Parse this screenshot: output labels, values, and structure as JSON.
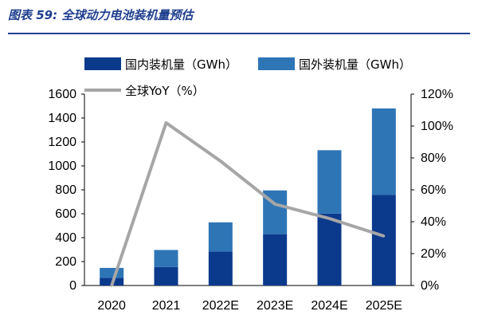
{
  "figure_title": "图表 59:  全球动力电池装机量预估",
  "chart_data": {
    "type": "bar",
    "stacked": true,
    "categories": [
      "2020",
      "2021",
      "2022E",
      "2023E",
      "2024E",
      "2025E"
    ],
    "series": [
      {
        "name": "国内装机量（GWh）",
        "color": "#0b3a8c",
        "values": [
          63,
          154,
          284,
          429,
          601,
          757
        ]
      },
      {
        "name": "国外装机量（GWh）",
        "color": "#2e75b6",
        "values": [
          84,
          143,
          244,
          366,
          530,
          723
        ]
      }
    ],
    "line_series": {
      "name": "全球YoY（%）",
      "color": "#a6a6a6",
      "axis": "right",
      "values": [
        0,
        102,
        78,
        51,
        42,
        31
      ]
    },
    "ylim": [
      0,
      1600
    ],
    "yticks": [
      0,
      200,
      400,
      600,
      800,
      1000,
      1200,
      1400,
      1600
    ],
    "y2lim": [
      0,
      120
    ],
    "y2ticks": [
      "0%",
      "20%",
      "40%",
      "60%",
      "80%",
      "100%",
      "120%"
    ],
    "legend_position": "top",
    "grid": false
  }
}
